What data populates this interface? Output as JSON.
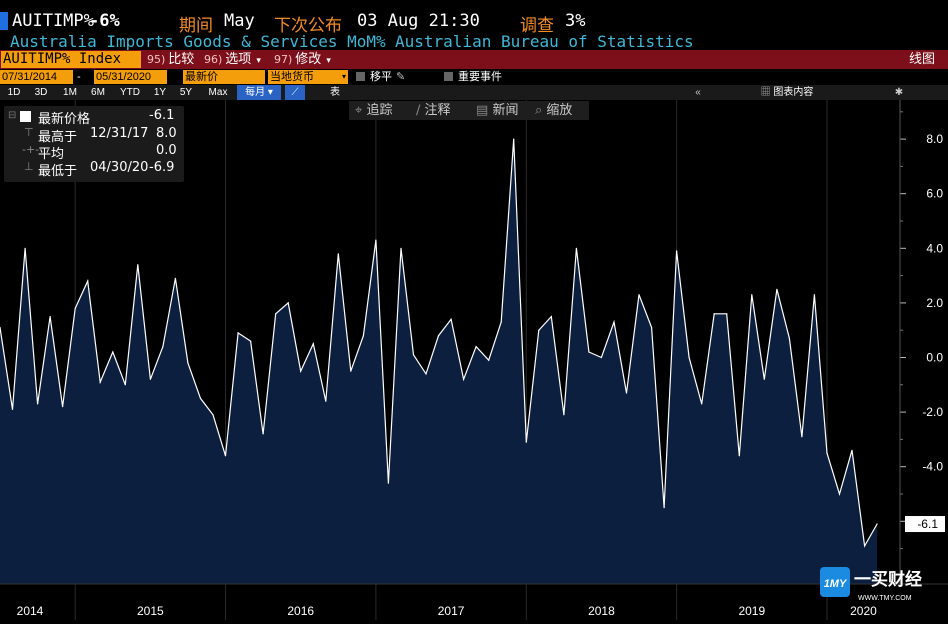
{
  "header": {
    "ticker": "AUITIMP%",
    "value": "-6%",
    "period_label": "期间",
    "period_value": "May",
    "next_release_label": "下次公布",
    "next_release_value": "03 Aug 21:30",
    "survey_label": "调查",
    "survey_value": "3%",
    "description": "Australia Imports Goods & Services MoM%",
    "source": "Australian Bureau of Statistics"
  },
  "toolbar": {
    "ticker_box": "AUITIMP% Index",
    "buttons": [
      {
        "num": "95)",
        "label": "比较"
      },
      {
        "num": "96)",
        "label": "选项"
      },
      {
        "num": "97)",
        "label": "修改"
      }
    ],
    "right_label": "线图"
  },
  "datebar": {
    "start": "07/31/2014",
    "end": "05/31/2020",
    "field": "最新价",
    "currency": "当地货币",
    "move_label": "移平",
    "events_label": "重要事件"
  },
  "ranges": [
    "1D",
    "3D",
    "1M",
    "6M",
    "YTD",
    "1Y",
    "5Y",
    "Max"
  ],
  "frequency": "每月",
  "table_label": "表",
  "chart_content_label": "图表内容",
  "tools": [
    "追踪",
    "注释",
    "新闻",
    "缩放"
  ],
  "legend": {
    "items": [
      {
        "label": "最新价格",
        "date": "",
        "value": "-6.1"
      },
      {
        "label": "最高于",
        "date": "12/31/17",
        "value": "8.0"
      },
      {
        "label": "平均",
        "date": "",
        "value": "0.0"
      },
      {
        "label": "最低于",
        "date": "04/30/20",
        "value": "-6.9"
      }
    ]
  },
  "last_value_tag": "-6.1",
  "watermark": {
    "brand": "一买财经",
    "url": "WWW.TMY.COM"
  },
  "colors": {
    "line": "#ffffff",
    "fill": "#0c1f3f",
    "accent": "#f59e0b",
    "red": "#7d0f1a",
    "caption": "#3fb7d6",
    "label_orange": "#f28c28"
  },
  "chart_data": {
    "type": "area",
    "title": "AUITIMP% Index",
    "xlabel": "",
    "ylabel": "",
    "ylim": [
      -8,
      9.5
    ],
    "yticks": [
      8.0,
      6.0,
      4.0,
      2.0,
      0.0,
      -2.0,
      -4.0,
      -6.0
    ],
    "ytick_labels": [
      "8.0",
      "6.0",
      "4.0",
      "2.0",
      "0.0",
      "-2.0",
      "-4.0",
      "-6.0"
    ],
    "x_start": "2014-07",
    "year_labels": [
      "2014",
      "2015",
      "2016",
      "2017",
      "2018",
      "2019",
      "2020"
    ],
    "year_month_index": [
      0,
      6,
      18,
      30,
      42,
      54,
      66
    ],
    "values": [
      1.1,
      -1.9,
      4.0,
      -1.7,
      1.5,
      -1.8,
      1.8,
      2.8,
      -0.9,
      0.2,
      -1.0,
      3.4,
      -0.8,
      0.4,
      2.9,
      -0.2,
      -1.5,
      -2.1,
      -3.6,
      0.9,
      0.6,
      -2.8,
      1.6,
      2.0,
      -0.5,
      0.5,
      -1.6,
      3.8,
      -0.5,
      0.8,
      4.3,
      -4.6,
      4.0,
      0.1,
      -0.6,
      0.8,
      1.4,
      -0.8,
      0.4,
      -0.1,
      1.3,
      8.0,
      -3.1,
      1.0,
      1.5,
      -2.1,
      4.0,
      0.2,
      0.0,
      1.3,
      -1.3,
      2.3,
      1.1,
      -5.5,
      3.9,
      0.0,
      -1.7,
      1.6,
      1.6,
      -3.6,
      2.3,
      -0.8,
      2.5,
      0.7,
      -2.9,
      2.3,
      -3.5,
      -5.0,
      -3.4,
      -6.9,
      -6.1
    ]
  }
}
